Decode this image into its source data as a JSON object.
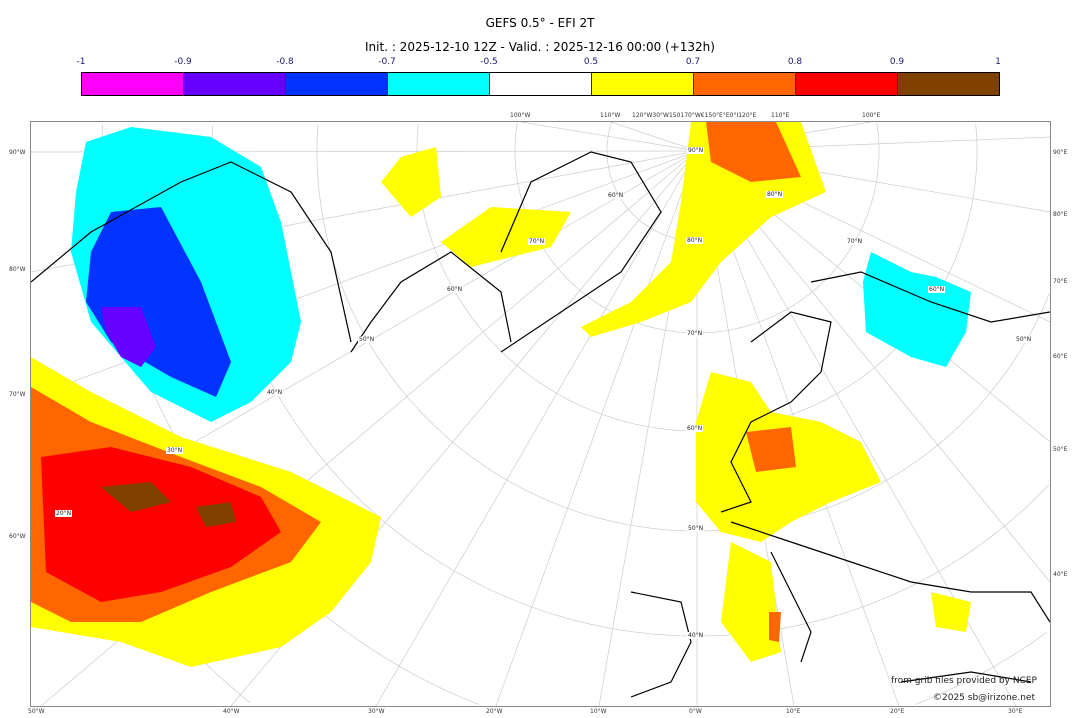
{
  "title": "GEFS 0.5° - EFI 2T",
  "subtitle": "Init. : 2025-12-10 12Z - Valid. : 2025-12-16 00:00 (+132h)",
  "colorbar": {
    "ticks": [
      "-1",
      "-0.9",
      "-0.8",
      "-0.7",
      "-0.5",
      "0.5",
      "0.7",
      "0.8",
      "0.9",
      "1"
    ],
    "colors": [
      "#ff00ff",
      "#6600ff",
      "#0033ff",
      "#00ffff",
      "#ffffff",
      "#ffff00",
      "#ff6600",
      "#ff0000",
      "#804000"
    ]
  },
  "axes": {
    "left": [
      "90°W",
      "80°W",
      "70°W",
      "60°W"
    ],
    "right": [
      "90°E",
      "80°E",
      "70°E",
      "60°E",
      "50°E",
      "40°E"
    ],
    "bottom": [
      "50°W",
      "40°W",
      "30°W",
      "20°W",
      "10°W",
      "0°W",
      "10°E",
      "20°E",
      "30°E"
    ],
    "top": [
      "100°W",
      "110°W",
      "120°W30°W150170°W€150°E°E0°I120°E",
      "110°E",
      "100°E"
    ]
  },
  "lat_labels": [
    "90°N",
    "80°N",
    "70°N",
    "60°N",
    "50°N",
    "40°N",
    "80°N",
    "70°N",
    "60°N",
    "50°N",
    "40°N",
    "30°N",
    "20°N",
    "70°N",
    "60°N",
    "50°N",
    "60°N"
  ],
  "credits": [
    "from grib files provided by NCEP",
    "©2025 sb@irizone.net"
  ]
}
